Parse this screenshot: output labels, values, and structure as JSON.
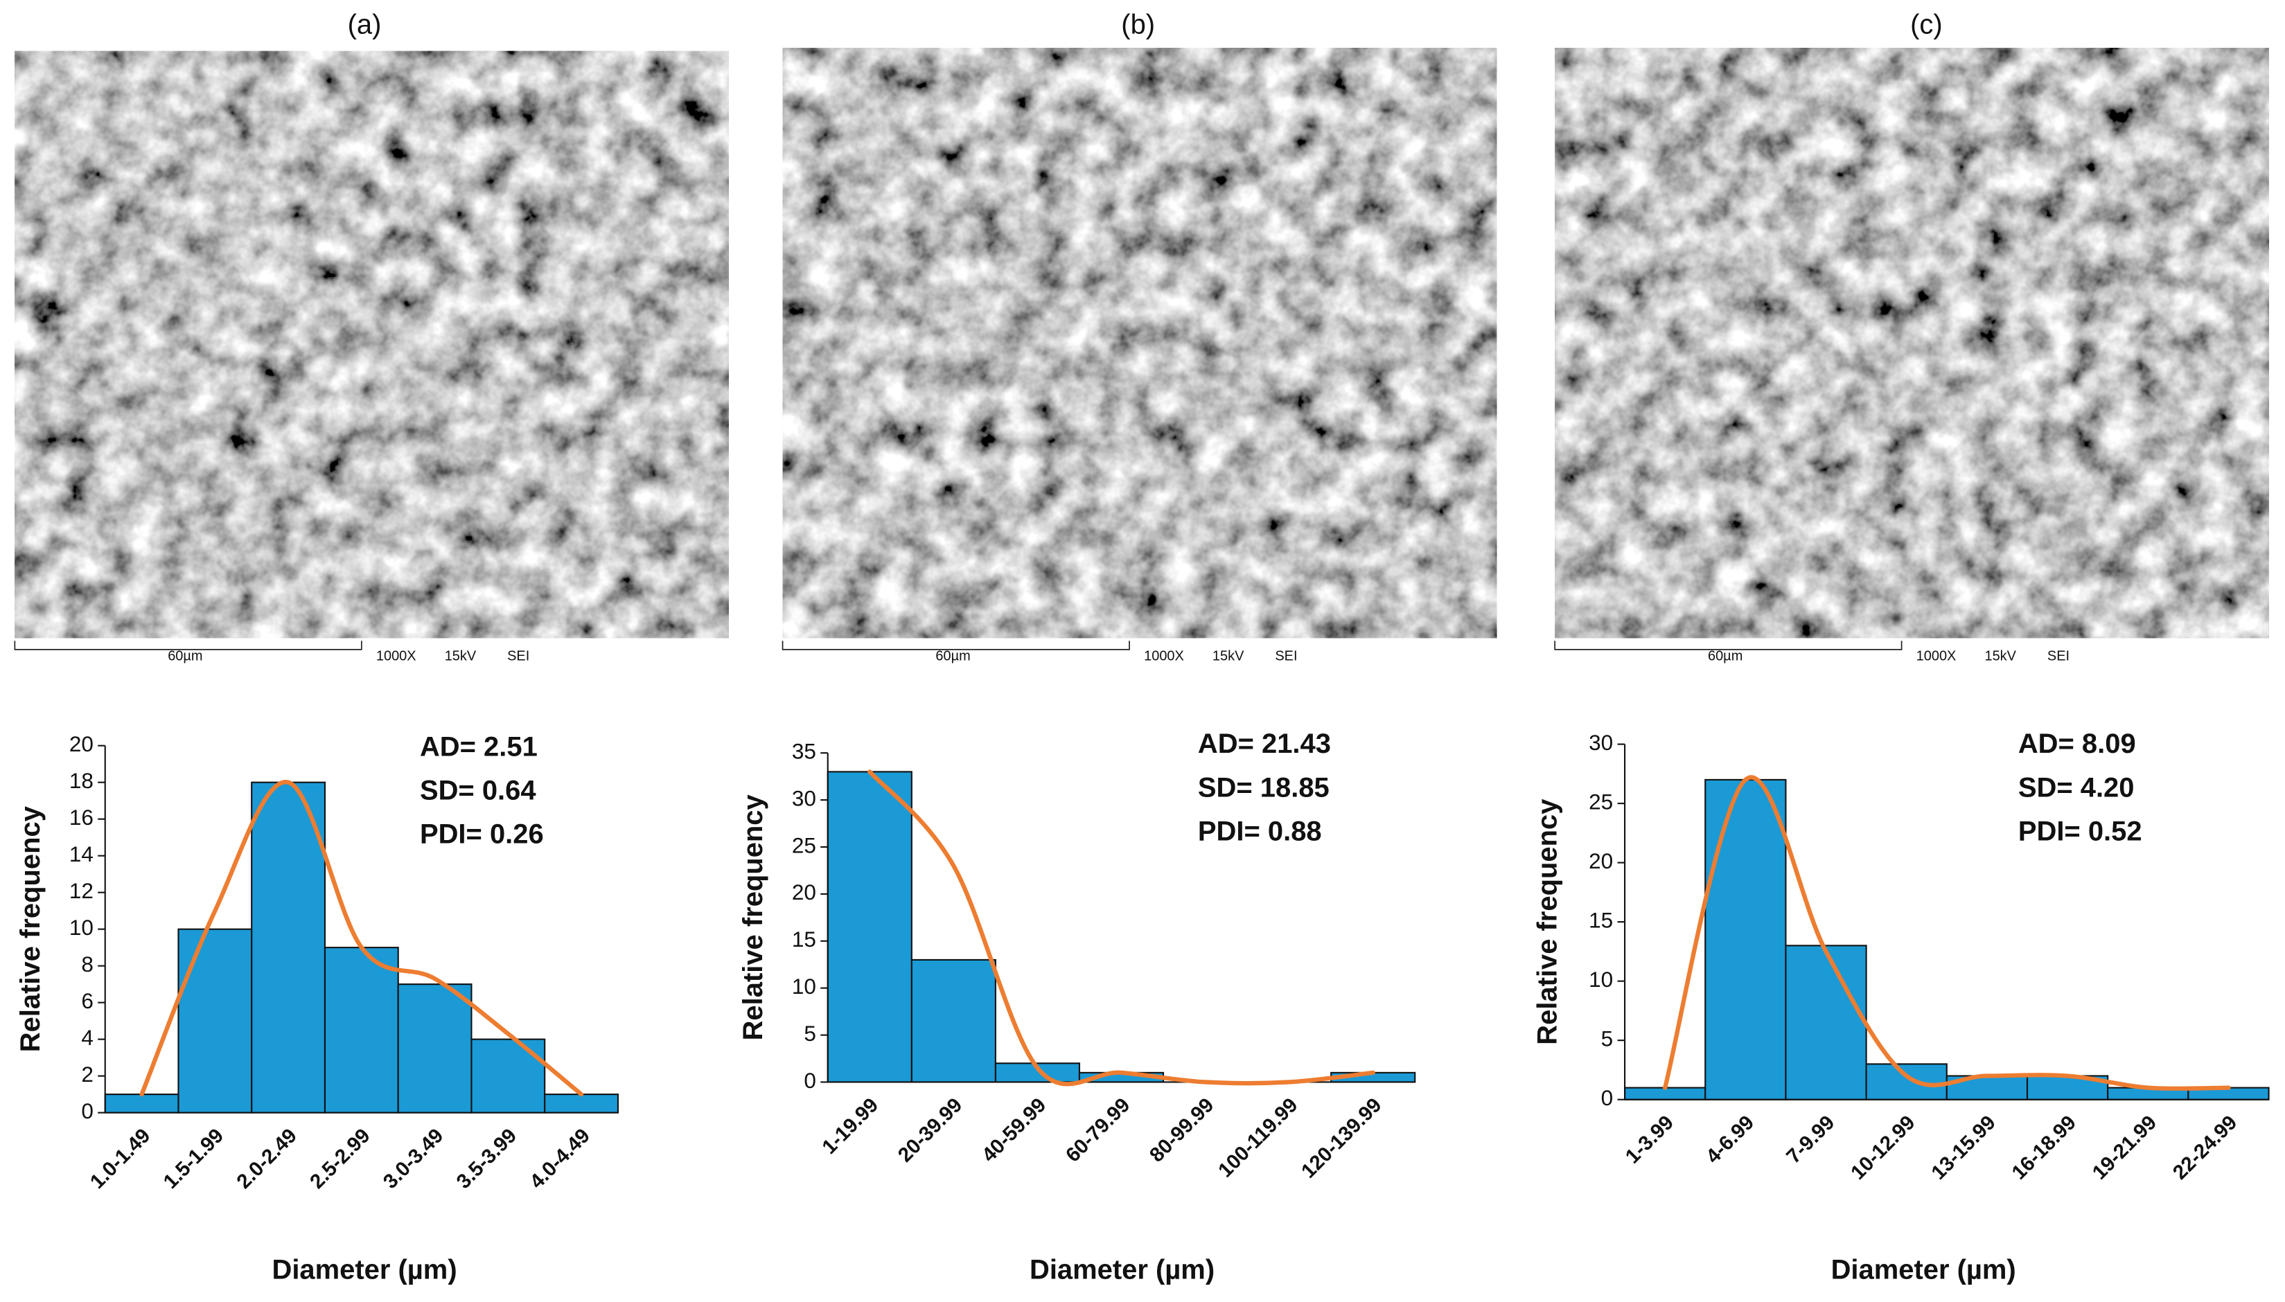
{
  "images": [
    {
      "label": "(a)",
      "scale": "60µm",
      "magnification": "1000X",
      "voltage": "15kV",
      "mode": "SEI"
    },
    {
      "label": "(b)",
      "scale": "60µm",
      "magnification": "1000X",
      "voltage": "15kV",
      "mode": "SEI"
    },
    {
      "label": "(c)",
      "scale": "60µm",
      "magnification": "1000X",
      "voltage": "15kV",
      "mode": "SEI"
    }
  ],
  "chart_data": [
    {
      "type": "bar",
      "x_label": "Diameter (µm)",
      "y_label": "Relative frequency",
      "categories": [
        "1.0-1.49",
        "1.5-1.99",
        "2.0-2.49",
        "2.5-2.99",
        "3.0-3.49",
        "3.5-3.99",
        "4.0-4.49"
      ],
      "values": [
        1,
        10,
        18,
        9,
        7,
        4,
        1
      ],
      "color": "#1b9ad6",
      "fit": {
        "color": "#ed7d31",
        "values": [
          1,
          11,
          18,
          9,
          7.3,
          4.3,
          1
        ]
      },
      "ylim": [
        0,
        20
      ],
      "yticks": [
        0,
        2,
        4,
        6,
        8,
        10,
        12,
        14,
        16,
        18,
        20
      ],
      "annotations": [
        "AD= 2.51",
        "SD= 0.64",
        "PDI= 0.26"
      ]
    },
    {
      "type": "bar",
      "x_label": "Diameter (µm)",
      "y_label": "Relative frequency",
      "categories": [
        "1-19.99",
        "20-39.99",
        "40-59.99",
        "60-79.99",
        "80-99.99",
        "100-119.99",
        "120-139.99"
      ],
      "values": [
        33,
        13,
        2,
        1,
        0,
        0,
        1
      ],
      "color": "#1b9ad6",
      "fit": {
        "color": "#ed7d31",
        "values": [
          33,
          23,
          1.5,
          1,
          0,
          0,
          1
        ]
      },
      "ylim": [
        0,
        35
      ],
      "yticks": [
        0,
        5,
        10,
        15,
        20,
        25,
        30,
        35
      ],
      "annotations": [
        "AD= 21.43",
        "SD= 18.85",
        "PDI= 0.88"
      ]
    },
    {
      "type": "bar",
      "x_label": "Diameter (µm)",
      "y_label": "Relative frequency",
      "categories": [
        "1-3.99",
        "4-6.99",
        "7-9.99",
        "10-12.99",
        "13-15.99",
        "16-18.99",
        "19-21.99",
        "22-24.99"
      ],
      "values": [
        1,
        27,
        13,
        3,
        2,
        2,
        1,
        1
      ],
      "color": "#1b9ad6",
      "fit": {
        "color": "#ed7d31",
        "values": [
          1,
          27,
          12.5,
          2,
          2,
          2,
          1,
          1
        ]
      },
      "ylim": [
        0,
        30
      ],
      "yticks": [
        0,
        5,
        10,
        15,
        20,
        25,
        30
      ],
      "annotations": [
        "AD= 8.09",
        "SD= 4.20",
        "PDI= 0.52"
      ]
    }
  ]
}
